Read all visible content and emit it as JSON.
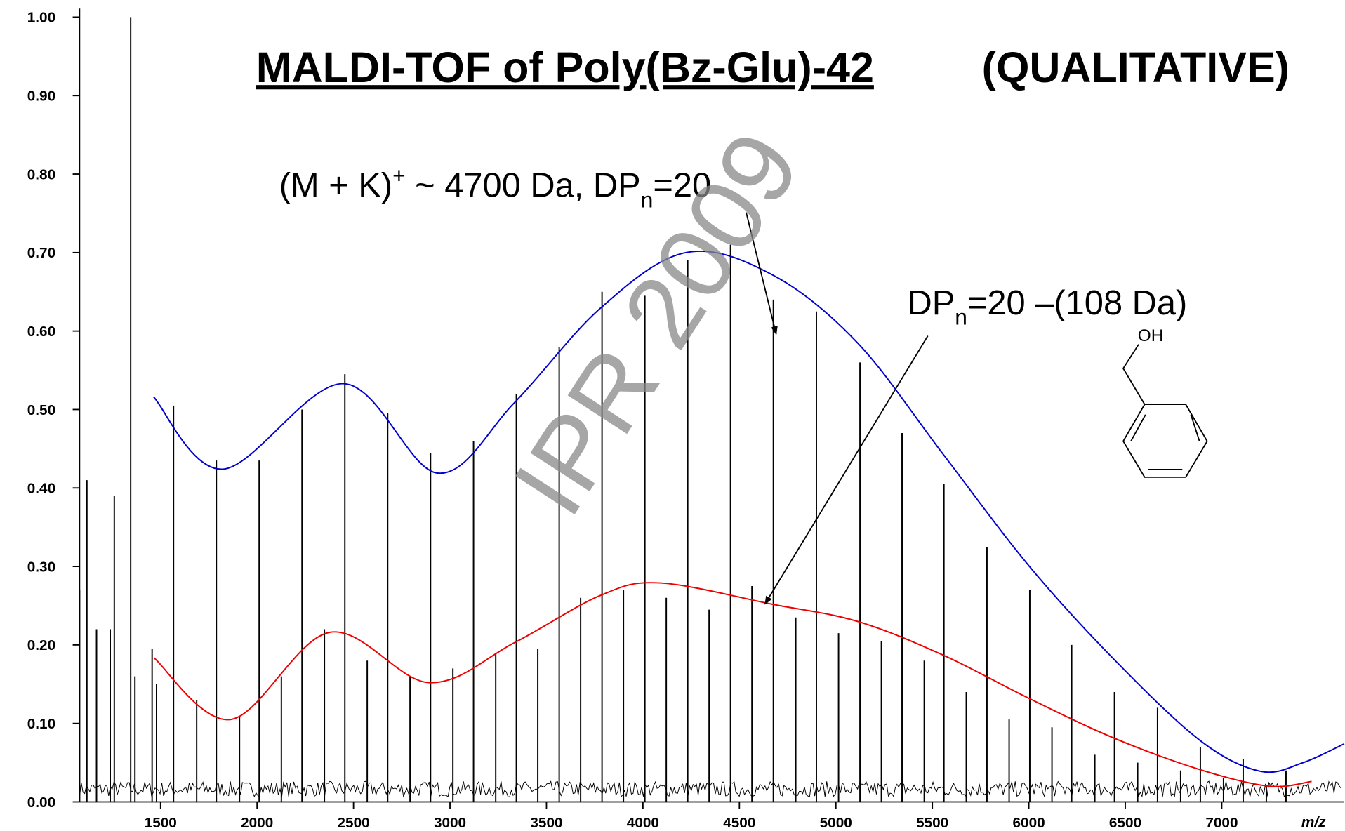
{
  "chart_data": {
    "type": "spectrum",
    "title": "MALDI-TOF of Poly(Bz-Glu)-42",
    "title_suffix": "(QUALITATIVE)",
    "x_label": "m/z",
    "xlim": [
      1080,
      7635
    ],
    "ylim": [
      0,
      1.0
    ],
    "xticks": [
      1500,
      2000,
      2500,
      3000,
      3500,
      4000,
      4500,
      5000,
      5500,
      6000,
      6500,
      7000
    ],
    "yticks": [
      {
        "value": 0,
        "label": "0.00"
      },
      {
        "value": 0.1,
        "label": "0.10"
      },
      {
        "value": 0.2,
        "label": "0.20"
      },
      {
        "value": 0.3,
        "label": "0.30"
      },
      {
        "value": 0.4,
        "label": "0.40"
      },
      {
        "value": 0.5,
        "label": "0.50"
      },
      {
        "value": 0.6,
        "label": "0.60"
      },
      {
        "value": 0.7,
        "label": "0.70"
      },
      {
        "value": 0.8,
        "label": "0.80"
      },
      {
        "value": 0.9,
        "label": "0.90"
      },
      {
        "value": 1.0,
        "label": "1.00"
      }
    ],
    "peaks": {
      "color": "#000000",
      "x": [
        1080,
        1118,
        1168,
        1239,
        1260,
        1345,
        1367,
        1456,
        1479,
        1567,
        1687,
        1789,
        1909,
        2011,
        2126,
        2233,
        2349,
        2455,
        2571,
        2677,
        2793,
        2899,
        3015,
        3122,
        3237,
        3344,
        3455,
        3566,
        3677,
        3788,
        3899,
        4010,
        4121,
        4232,
        4343,
        4454,
        4565,
        4676,
        4792,
        4899,
        5014,
        5125,
        5236,
        5343,
        5458,
        5560,
        5676,
        5783,
        5898,
        6005,
        6120,
        6222,
        6342,
        6444,
        6564,
        6667,
        6787,
        6889,
        7009,
        7111,
        7231,
        7333
      ],
      "values": [
        0.27,
        0.41,
        0.22,
        0.22,
        0.39,
        1.0,
        0.16,
        0.195,
        0.15,
        0.505,
        0.13,
        0.435,
        0.11,
        0.435,
        0.16,
        0.5,
        0.22,
        0.545,
        0.18,
        0.495,
        0.16,
        0.445,
        0.17,
        0.46,
        0.19,
        0.52,
        0.195,
        0.58,
        0.26,
        0.65,
        0.27,
        0.645,
        0.26,
        0.69,
        0.245,
        0.71,
        0.275,
        0.64,
        0.235,
        0.625,
        0.215,
        0.56,
        0.205,
        0.47,
        0.18,
        0.405,
        0.14,
        0.325,
        0.105,
        0.27,
        0.095,
        0.2,
        0.06,
        0.14,
        0.05,
        0.12,
        0.04,
        0.07,
        0.03,
        0.055,
        0.02,
        0.04
      ]
    },
    "series": [
      {
        "color": "#0000cc",
        "x": [
          1464,
          1824,
          2446,
          2935,
          3335,
          3779,
          4223,
          4668,
          5112,
          5556,
          6000,
          6444,
          6889,
          7200,
          7422,
          7635
        ],
        "values": [
          0.516,
          0.424,
          0.533,
          0.419,
          0.509,
          0.629,
          0.7,
          0.672,
          0.585,
          0.443,
          0.301,
          0.181,
          0.078,
          0.039,
          0.05,
          0.074
        ]
      },
      {
        "color": "#ee0000",
        "x": [
          1464,
          1864,
          2375,
          2890,
          3335,
          3779,
          4090,
          4668,
          5112,
          5556,
          6000,
          6444,
          6889,
          7244,
          7466
        ],
        "values": [
          0.184,
          0.105,
          0.216,
          0.152,
          0.203,
          0.263,
          0.279,
          0.252,
          0.23,
          0.187,
          0.132,
          0.081,
          0.041,
          0.02,
          0.026
        ]
      }
    ],
    "annotations": {
      "upper": {
        "a": "(M + K)",
        "sup": "+",
        "b": " ~ 4700 Da, DP",
        "sub": "n",
        "c": "=20"
      },
      "lower": {
        "a": "DP",
        "sub": "n",
        "c": "=20 –(108 Da)"
      },
      "structure_label": "OH",
      "watermark": "IPR 2009"
    }
  }
}
